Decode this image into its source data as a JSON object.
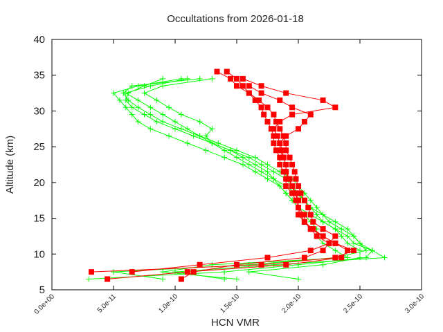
{
  "chart_data": {
    "type": "line",
    "title": "Occultations from 2026-01-18",
    "xlabel": "HCN VMR",
    "ylabel": "Altitude (km)",
    "xlim": [
      0,
      3e-10
    ],
    "ylim": [
      5,
      40
    ],
    "x_unit_scale": 1e-10,
    "xticks": [
      "0.0e+00",
      "5.0e-11",
      "1.0e-10",
      "1.5e-10",
      "2.0e-10",
      "2.5e-10",
      "3.0e-10"
    ],
    "xtick_values": [
      0,
      0.5,
      1.0,
      1.5,
      2.0,
      2.5,
      3.0
    ],
    "yticks": [
      "5",
      "10",
      "15",
      "20",
      "25",
      "30",
      "35",
      "40"
    ],
    "ytick_values": [
      5,
      10,
      15,
      20,
      25,
      30,
      35,
      40
    ],
    "grid": false,
    "colors": {
      "red": "#ff0000",
      "green": "#00ff00"
    },
    "series": [
      {
        "color": "#ff0000",
        "marker": "square",
        "altitude": [
          6.5,
          7.5,
          8.5,
          9.5,
          10.5,
          11.5,
          12.5,
          13.5,
          14.5,
          15.5,
          16.5,
          17.5,
          18.5,
          19.5,
          20.5,
          21.5,
          22.5,
          23.5,
          24.5,
          25.5,
          26.5,
          27.5,
          28.5,
          29.5,
          30.5,
          31.5,
          32.5,
          33.5,
          34.5,
          35.5
        ],
        "vmr": [
          0.45,
          1.1,
          1.9,
          2.35,
          2.4,
          2.3,
          2.2,
          2.1,
          2.05,
          2.0,
          2.0,
          1.98,
          1.95,
          1.9,
          1.9,
          1.88,
          1.85,
          1.85,
          1.82,
          1.8,
          1.8,
          1.78,
          1.75,
          1.72,
          1.7,
          1.65,
          1.6,
          1.5,
          1.45,
          1.34
        ]
      },
      {
        "color": "#ff0000",
        "marker": "square",
        "altitude": [
          7.5,
          8.5,
          9.5,
          10.5,
          11.5,
          12.5,
          13.5,
          14.5,
          15.5,
          16.5,
          17.5,
          18.5,
          19.5,
          20.5,
          21.5,
          22.5,
          23.5,
          24.5,
          25.5,
          26.5,
          27.5,
          28.5,
          29.5,
          30.5,
          31.5,
          32.5,
          33.5,
          34.5
        ],
        "vmr": [
          0.32,
          1.7,
          2.3,
          2.45,
          2.3,
          2.2,
          2.12,
          2.05,
          2.05,
          2.0,
          2.0,
          1.98,
          1.95,
          1.92,
          1.9,
          1.9,
          1.88,
          1.85,
          1.85,
          1.83,
          1.8,
          1.85,
          1.95,
          2.3,
          2.2,
          1.9,
          1.7,
          1.55
        ]
      },
      {
        "color": "#ff0000",
        "marker": "square",
        "altitude": [
          6.5,
          7.5,
          8.5,
          9.5,
          10.5,
          11.5,
          12.5,
          13.5,
          14.5,
          15.5,
          16.5,
          17.5,
          18.5,
          19.5,
          20.5,
          21.5,
          22.5,
          23.5,
          24.5,
          25.5,
          26.5,
          27.5,
          28.5,
          29.5,
          30.5,
          31.5,
          32.5,
          33.5
        ],
        "vmr": [
          1.05,
          1.15,
          1.5,
          2.05,
          2.2,
          2.25,
          2.15,
          2.1,
          2.05,
          2.02,
          2.0,
          2.0,
          1.97,
          1.95,
          1.93,
          1.9,
          1.9,
          1.88,
          1.87,
          1.85,
          1.9,
          2.0,
          2.05,
          2.1,
          1.95,
          1.85,
          1.7,
          1.6
        ]
      },
      {
        "color": "#ff0000",
        "marker": "square",
        "altitude": [
          7.5,
          8.5,
          9.5,
          10.5,
          11.5,
          12.5,
          13.5,
          14.5,
          15.5,
          16.5,
          17.5,
          18.5,
          19.5,
          20.5,
          21.5,
          22.5,
          23.5,
          24.5,
          25.5,
          26.5,
          27.5,
          28.5,
          29.5,
          30.5,
          31.5,
          32.5,
          33.5,
          34.5,
          35.5
        ],
        "vmr": [
          0.65,
          1.2,
          1.75,
          2.1,
          2.25,
          2.3,
          2.2,
          2.12,
          2.1,
          2.08,
          2.05,
          2.02,
          2.0,
          1.98,
          1.97,
          1.95,
          1.93,
          1.9,
          1.9,
          1.88,
          1.85,
          1.82,
          1.8,
          1.75,
          1.68,
          1.6,
          1.55,
          1.5,
          1.42
        ]
      },
      {
        "color": "#00ff00",
        "marker": "plus",
        "altitude": [
          6.5,
          7.5,
          8.5,
          9.5,
          10.5,
          11.5,
          12.5,
          13.5,
          14.5,
          15.5,
          16.5,
          17.5,
          18.5,
          19.5,
          20.5,
          21.5,
          22.5,
          23.5,
          24.5,
          25.5,
          26.5,
          27.5,
          28.5,
          29.5,
          30.5,
          31.5,
          32.5,
          33.5,
          34.5
        ],
        "vmr": [
          0.3,
          1.4,
          2.0,
          2.55,
          2.6,
          2.45,
          2.4,
          2.3,
          2.2,
          2.1,
          2.0,
          1.95,
          1.9,
          1.85,
          1.75,
          1.65,
          1.55,
          1.4,
          1.25,
          1.1,
          0.95,
          0.8,
          0.7,
          0.65,
          0.6,
          0.55,
          0.5,
          0.7,
          1.05
        ]
      },
      {
        "color": "#00ff00",
        "marker": "plus",
        "altitude": [
          6.5,
          7.5,
          8.5,
          9.5,
          10.5,
          11.5,
          12.5,
          13.5,
          14.5,
          15.5,
          16.5,
          17.5,
          18.5,
          19.5,
          20.5,
          21.5,
          22.5,
          23.5,
          24.5,
          25.5,
          26.5,
          27.5,
          28.5,
          29.5,
          30.5,
          31.5,
          32.5,
          33.5,
          34.5
        ],
        "vmr": [
          1.4,
          1.0,
          1.8,
          2.7,
          2.6,
          2.5,
          2.45,
          2.35,
          2.25,
          2.2,
          2.1,
          2.05,
          2.0,
          1.95,
          1.9,
          1.8,
          1.7,
          1.6,
          1.45,
          1.3,
          1.15,
          1.0,
          0.85,
          0.75,
          0.65,
          0.6,
          0.62,
          0.75,
          0.9
        ]
      },
      {
        "color": "#00ff00",
        "marker": "plus",
        "altitude": [
          6.5,
          7.5,
          8.5,
          9.5,
          10.5,
          11.5,
          12.5,
          13.5,
          14.5,
          15.5,
          16.5,
          17.5,
          18.5,
          19.5,
          20.5,
          21.5,
          22.5,
          23.5,
          24.5,
          25.5,
          26.5,
          27.5,
          28.5,
          29.5,
          30.5,
          31.5,
          32.5,
          33.5,
          34.5
        ],
        "vmr": [
          0.9,
          0.5,
          1.6,
          2.3,
          2.55,
          2.5,
          2.45,
          2.4,
          2.3,
          2.2,
          2.15,
          2.1,
          2.05,
          2.0,
          1.95,
          1.85,
          1.75,
          1.65,
          1.5,
          1.35,
          1.2,
          1.05,
          0.9,
          0.8,
          0.7,
          0.62,
          0.58,
          0.65,
          1.2
        ]
      },
      {
        "color": "#00ff00",
        "marker": "plus",
        "altitude": [
          6.5,
          7.5,
          8.5,
          9.5,
          10.5,
          11.5,
          12.5,
          13.5,
          14.5,
          15.5,
          16.5,
          17.5,
          18.5,
          19.5,
          20.5,
          21.5,
          22.5,
          23.5,
          24.5,
          25.5,
          26.5,
          27.5,
          28.5,
          29.5,
          30.5,
          31.5,
          32.5,
          33.5,
          34.5
        ],
        "vmr": [
          2.0,
          1.6,
          2.2,
          2.5,
          2.5,
          2.4,
          2.35,
          2.3,
          2.2,
          2.15,
          2.1,
          2.05,
          1.98,
          1.9,
          1.8,
          1.7,
          1.6,
          1.5,
          1.4,
          1.3,
          1.25,
          1.3,
          1.2,
          1.05,
          0.95,
          0.85,
          0.75,
          0.9,
          1.3
        ]
      },
      {
        "color": "#00ff00",
        "marker": "plus",
        "altitude": [
          6.5,
          7.5,
          8.5,
          9.5,
          10.5,
          11.5,
          12.5,
          13.5,
          14.5,
          15.5,
          16.5,
          17.5,
          18.5,
          19.5,
          20.5,
          21.5,
          22.5,
          23.5,
          24.5,
          25.5,
          26.5,
          27.5,
          28.5,
          29.5,
          30.5,
          31.5,
          32.5,
          33.5,
          34.5
        ],
        "vmr": [
          1.5,
          0.9,
          1.3,
          2.4,
          2.3,
          2.2,
          2.15,
          2.15,
          2.1,
          2.05,
          2.0,
          1.95,
          1.9,
          1.85,
          1.8,
          1.75,
          1.65,
          1.55,
          1.45,
          1.3,
          1.2,
          1.1,
          1.0,
          0.9,
          0.8,
          0.7,
          0.6,
          0.8,
          1.1
        ]
      }
    ]
  }
}
